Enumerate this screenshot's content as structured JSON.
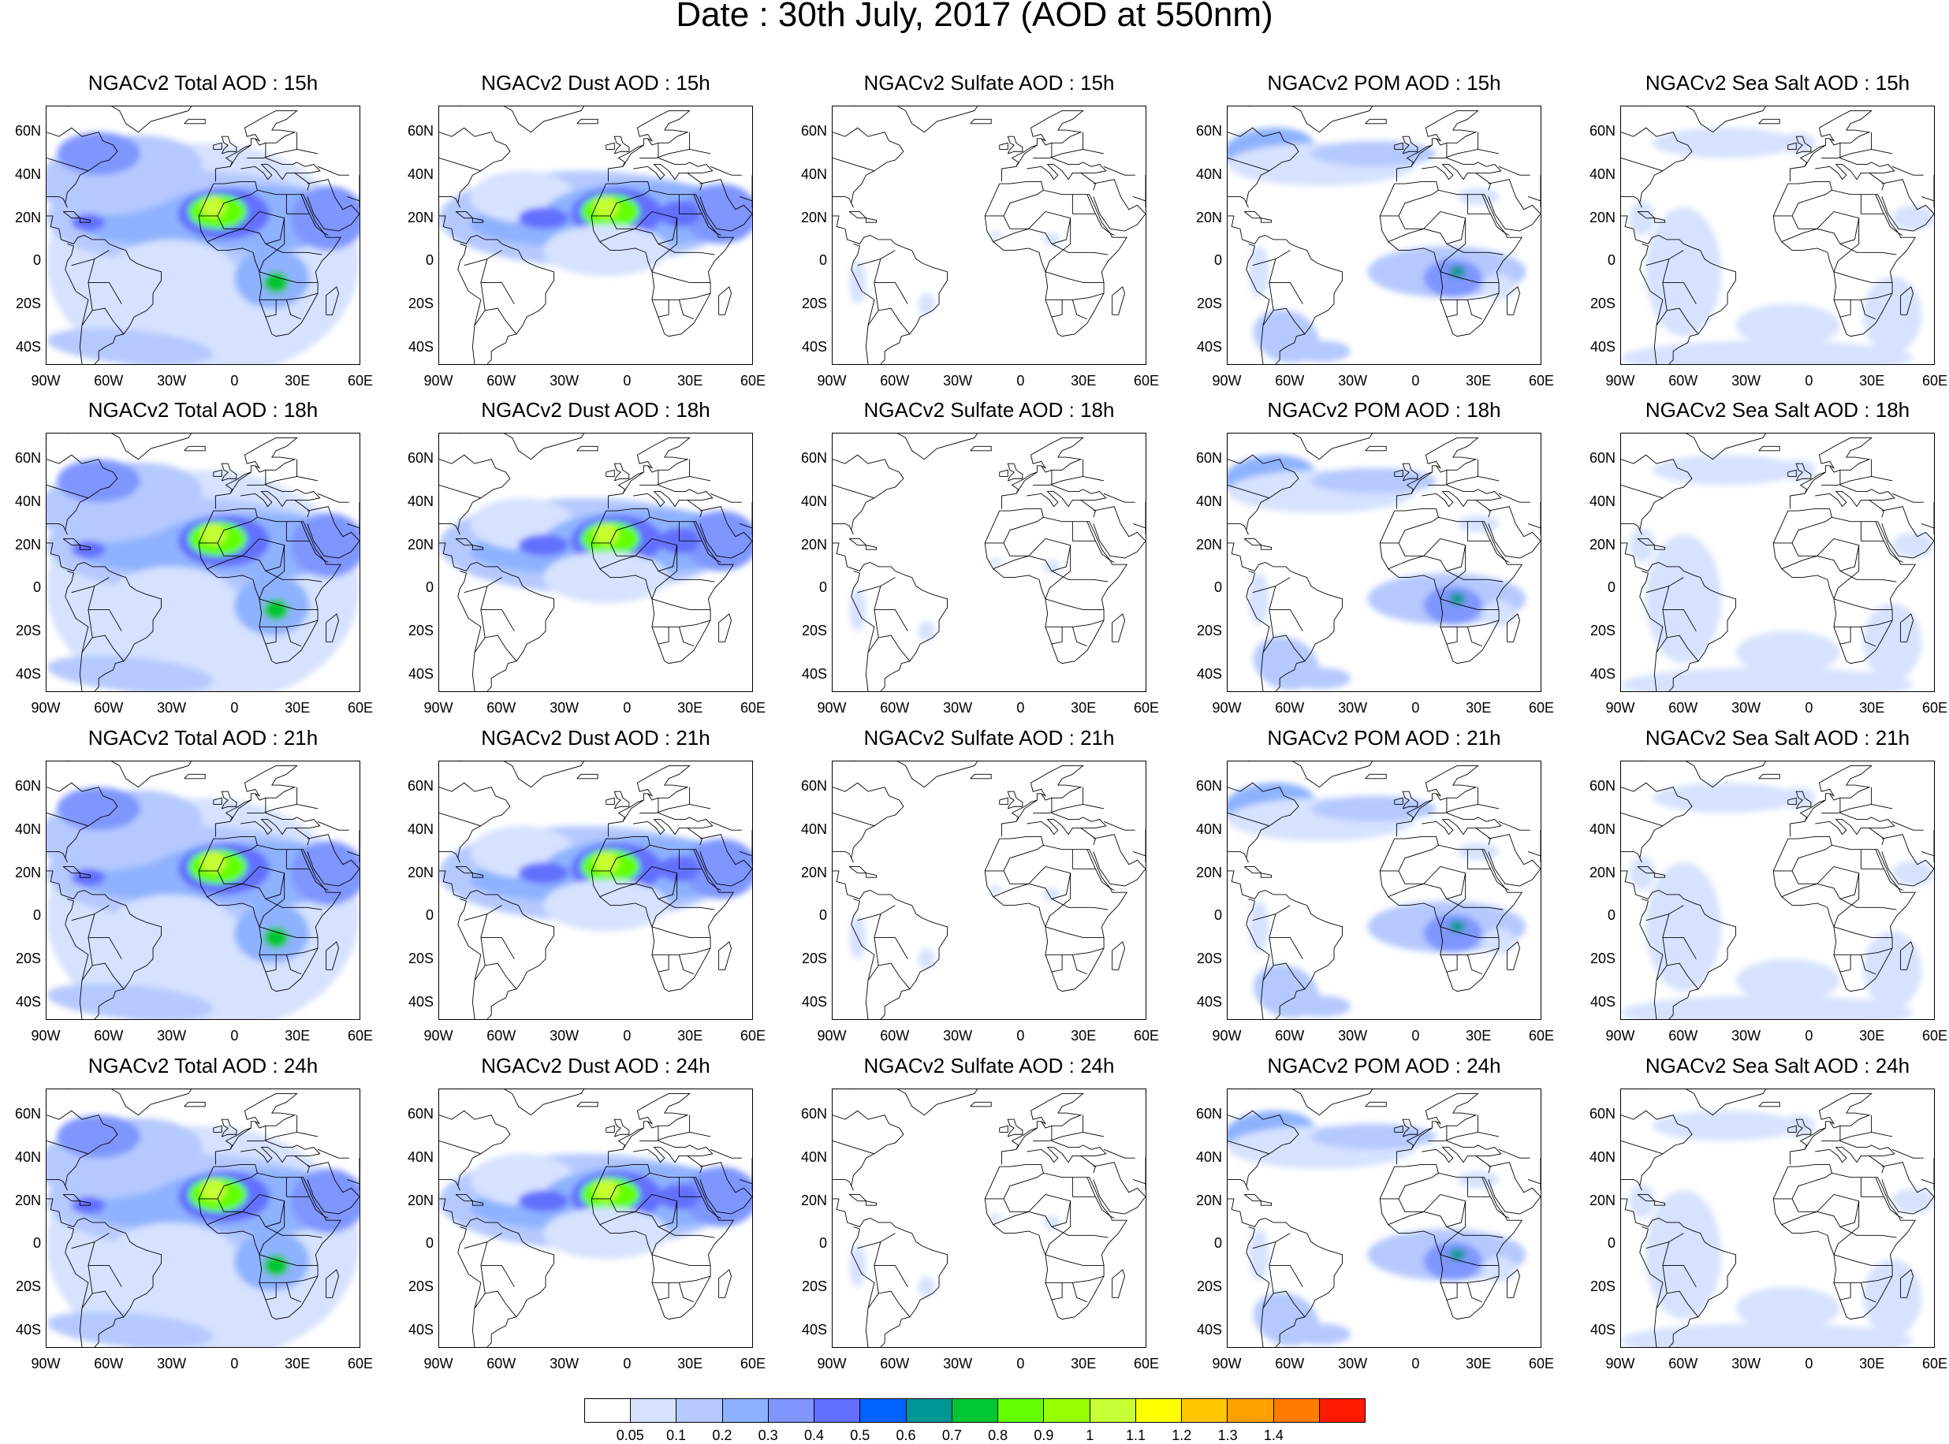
{
  "title": "Date : 30th July, 2017 (AOD at 550nm)",
  "panels": [
    [
      "NGACv2 Total AOD : 15h",
      "NGACv2 Dust AOD : 15h",
      "NGACv2 Sulfate AOD : 15h",
      "NGACv2 POM AOD : 15h",
      "NGACv2 Sea Salt AOD : 15h"
    ],
    [
      "NGACv2 Total AOD : 18h",
      "NGACv2 Dust AOD : 18h",
      "NGACv2 Sulfate AOD : 18h",
      "NGACv2 POM AOD : 18h",
      "NGACv2 Sea Salt AOD : 18h"
    ],
    [
      "NGACv2 Total AOD : 21h",
      "NGACv2 Dust AOD : 21h",
      "NGACv2 Sulfate AOD : 21h",
      "NGACv2 POM AOD : 21h",
      "NGACv2 Sea Salt AOD : 21h"
    ],
    [
      "NGACv2 Total AOD : 24h",
      "NGACv2 Dust AOD : 24h",
      "NGACv2 Sulfate AOD : 24h",
      "NGACv2 POM AOD : 24h",
      "NGACv2 Sea Salt  AOD : 24h"
    ]
  ],
  "panel_types": [
    "total",
    "dust",
    "sulfate",
    "pom",
    "seasalt"
  ],
  "lat_labels": [
    "60N",
    "40N",
    "20N",
    "0",
    "20S",
    "40S"
  ],
  "lon_labels": [
    "90W",
    "60W",
    "30W",
    "0",
    "30E",
    "60E"
  ],
  "colorbar": {
    "levels": [
      "0.05",
      "0.1",
      "0.2",
      "0.3",
      "0.4",
      "0.5",
      "0.6",
      "0.7",
      "0.8",
      "0.9",
      "1",
      "1.1",
      "1.2",
      "1.3",
      "1.4"
    ],
    "colors": [
      "#ffffff",
      "#d6e2ff",
      "#b5c9ff",
      "#8eb2ff",
      "#7f96ff",
      "#6370ff",
      "#0063ff",
      "#009696",
      "#00c633",
      "#63ff00",
      "#96ff00",
      "#c6ff33",
      "#ffff00",
      "#ffc600",
      "#ffa000",
      "#ff7c00",
      "#ff1900"
    ]
  },
  "chart_data": {
    "type": "heatmap",
    "title": "Date : 30th July, 2017 (AOD at 550nm)",
    "x_range": [
      "90W",
      "60E"
    ],
    "y_range": [
      "48S",
      "72N"
    ],
    "forecast_hours": [
      "15h",
      "18h",
      "21h",
      "24h"
    ],
    "species": [
      "Total",
      "Dust",
      "Sulfate",
      "POM",
      "Sea Salt"
    ],
    "levels": [
      0.05,
      0.1,
      0.2,
      0.3,
      0.4,
      0.5,
      0.6,
      0.7,
      0.8,
      0.9,
      1,
      1.1,
      1.2,
      1.3,
      1.4
    ]
  }
}
